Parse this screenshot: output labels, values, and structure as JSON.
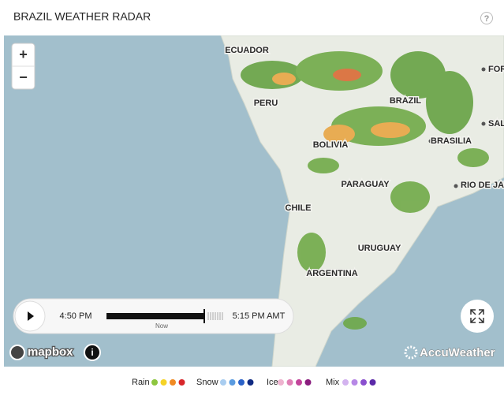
{
  "header": {
    "title": "BRAZIL WEATHER RADAR",
    "help": "?"
  },
  "zoom": {
    "in": "+",
    "out": "−"
  },
  "map": {
    "labels": [
      "ECUADOR",
      "PERU",
      "BRAZIL",
      "BOLIVIA",
      "BRASILIA",
      "PARAGUAY",
      "CHILE",
      "URUGUAY",
      "ARGENTINA",
      "RIO DE JAN",
      "FOR",
      "SAL"
    ]
  },
  "player": {
    "start_time": "4:50 PM",
    "now": "Now",
    "end_time": "5:15 PM AMT"
  },
  "attribution": {
    "mapbox": "mapbox",
    "info": "i",
    "provider": "AccuWeather"
  },
  "legend": [
    {
      "name": "Rain",
      "colors": [
        "#8dc63f",
        "#f5d327",
        "#f08a24",
        "#d8262a"
      ]
    },
    {
      "name": "Snow",
      "colors": [
        "#a9cdf0",
        "#5a9be0",
        "#2b62c8",
        "#102a82"
      ]
    },
    {
      "name": "Ice",
      "colors": [
        "#eeb3cf",
        "#df7fb5",
        "#c2449a",
        "#8a1d7e"
      ]
    },
    {
      "name": "Mix",
      "colors": [
        "#d3b3ef",
        "#b788e6",
        "#8a50cf",
        "#5b2aa8"
      ]
    }
  ]
}
